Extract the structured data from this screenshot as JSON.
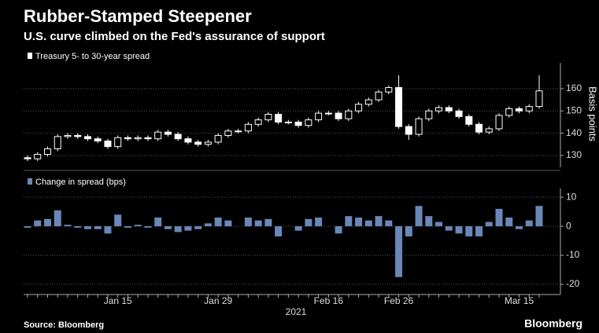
{
  "title": "Rubber-Stamped Steepener",
  "subtitle": "U.S. curve climbed on the Fed's assurance of support",
  "source": "Source: Bloomberg",
  "brand": "Bloomberg",
  "chart_data": [
    {
      "type": "candlestick",
      "legend": "Treasury 5- to 30-year spread",
      "ylabel": "Basis points",
      "up_color": "#000000",
      "down_color": "#ffffff",
      "line_color": "#ffffff",
      "ylim": [
        124.7,
        171.6
      ],
      "yticks": [
        130,
        140,
        150,
        160
      ],
      "grid": true,
      "open": [
        129,
        128.5,
        130.5,
        133,
        138.5,
        139,
        138.5,
        137.5,
        136.5,
        134,
        138,
        137.5,
        138,
        137.5,
        140.5,
        139.5,
        137.5,
        136,
        135,
        136,
        139,
        141,
        141,
        144,
        146,
        148.5,
        145,
        145,
        143.5,
        146,
        149,
        149,
        146.5,
        150,
        153,
        155,
        158.5,
        160.5,
        143,
        139.5,
        146.5,
        150,
        151.5,
        150,
        147.5,
        144,
        140.5,
        142,
        148,
        151,
        150,
        152
      ],
      "high": [
        130,
        131.5,
        134,
        139.5,
        140,
        140,
        139.5,
        138.5,
        137.5,
        139,
        139,
        139,
        139,
        141.5,
        141.5,
        140.5,
        138.5,
        137,
        137,
        140,
        142,
        142,
        145,
        147,
        149.5,
        149.5,
        146,
        146,
        147,
        150,
        150,
        150,
        151,
        154,
        156,
        159.5,
        161.5,
        166,
        144,
        147.5,
        151,
        152.5,
        152.5,
        151,
        148.5,
        145,
        143,
        149,
        152,
        152,
        153,
        166
      ],
      "low": [
        127.5,
        127.5,
        129.5,
        132,
        137.5,
        137.5,
        136.5,
        135.5,
        133,
        133,
        136.5,
        136.5,
        136.5,
        136.5,
        138.5,
        136.5,
        135,
        134,
        134,
        135,
        138,
        140,
        140,
        143,
        145,
        144,
        144,
        142.5,
        142.5,
        145,
        148,
        145.5,
        145.5,
        149,
        152,
        154,
        157.5,
        142,
        137,
        138.5,
        145.5,
        149,
        149,
        146.5,
        143,
        139.5,
        139.5,
        141,
        147,
        149,
        149,
        151
      ],
      "close": [
        128.5,
        130.5,
        133,
        138.5,
        139,
        138.5,
        137.5,
        136.5,
        134,
        138,
        137.5,
        138,
        137.5,
        140.5,
        139.5,
        137.5,
        136,
        135,
        136,
        139,
        141,
        141,
        144,
        146,
        148.5,
        145,
        145,
        143.5,
        146,
        149,
        149,
        146.5,
        150,
        153,
        155,
        158.5,
        160.5,
        143,
        139.5,
        146.5,
        150,
        151.5,
        150,
        147.5,
        144,
        140.5,
        142,
        148,
        151,
        150,
        152,
        159
      ]
    },
    {
      "type": "bar",
      "legend": "Change in spread (bps)",
      "color": "#6a87b8",
      "ylim": [
        -23.5,
        13
      ],
      "yticks": [
        -20,
        -10,
        0,
        10
      ],
      "grid": true,
      "x_label": "2021",
      "categories": [
        null,
        null,
        null,
        null,
        null,
        null,
        null,
        null,
        null,
        "Jan 15",
        null,
        null,
        null,
        null,
        null,
        null,
        null,
        null,
        null,
        "Jan 29",
        null,
        null,
        null,
        null,
        null,
        null,
        null,
        null,
        null,
        null,
        "Feb 16",
        null,
        null,
        null,
        null,
        null,
        null,
        "Feb 26",
        null,
        null,
        null,
        null,
        null,
        null,
        null,
        null,
        null,
        null,
        null,
        "Mar 15",
        null,
        null
      ],
      "values": [
        -0.5,
        2,
        2.5,
        5.5,
        0.5,
        -0.5,
        -1,
        -1,
        -2.5,
        4,
        -0.5,
        0.5,
        -0.5,
        3,
        -1,
        -2,
        -1.5,
        -1,
        1,
        3,
        2,
        0,
        3,
        2,
        2.5,
        -3.5,
        0,
        -1.5,
        2.5,
        3,
        0,
        -2.5,
        3.5,
        3,
        2,
        3.5,
        2,
        -17.5,
        -3.5,
        7,
        3.5,
        1.5,
        -1.5,
        -2.5,
        -3.5,
        -3.5,
        1.5,
        6,
        3,
        -1,
        2,
        7
      ]
    }
  ]
}
